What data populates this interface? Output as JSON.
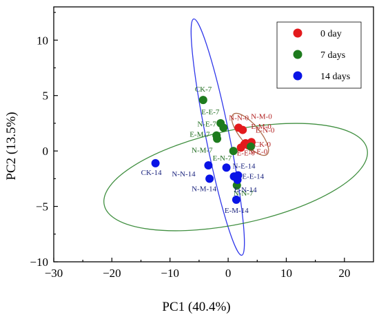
{
  "chart_data": {
    "type": "scatter",
    "xlabel": "PC1 (40.4%)",
    "ylabel": "PC2 (13.5%)",
    "xlim": [
      -30,
      25
    ],
    "ylim": [
      -10,
      13
    ],
    "xticks": [
      -30,
      -20,
      -10,
      0,
      10,
      20
    ],
    "yticks": [
      -10,
      -5,
      0,
      5,
      10
    ],
    "legend_position": "top-right",
    "series": [
      {
        "name": "0 day",
        "color": "#e31a1c",
        "label_color": "#b22222",
        "points": [
          {
            "x": 1.8,
            "y": 2.1,
            "label": "N-N-0"
          },
          {
            "x": 2.5,
            "y": 1.9,
            "label": "N-M-0"
          },
          {
            "x": 3.0,
            "y": 0.7,
            "label": "E-M-0"
          },
          {
            "x": 4.0,
            "y": 0.8,
            "label": "E-N-0"
          },
          {
            "x": 3.5,
            "y": 0.5,
            "label": "CK-0"
          },
          {
            "x": 2.8,
            "y": 0.6,
            "label": "N-E-0"
          },
          {
            "x": 2.2,
            "y": 0.3,
            "label": "E-E-0"
          }
        ]
      },
      {
        "name": "7 days",
        "color": "#1e7b1e",
        "label_color": "#1e6b1e",
        "points": [
          {
            "x": -4.3,
            "y": 4.6,
            "label": "CK-7"
          },
          {
            "x": -1.3,
            "y": 2.5,
            "label": "E-E-7"
          },
          {
            "x": -0.8,
            "y": 2.1,
            "label": "N-E-7"
          },
          {
            "x": -2.0,
            "y": 1.4,
            "label": "E-M-7"
          },
          {
            "x": -1.9,
            "y": 1.1,
            "label": "N-M-7"
          },
          {
            "x": 0.9,
            "y": 0.0,
            "label": "E-N-7"
          },
          {
            "x": 1.5,
            "y": -3.1,
            "label": "N-N-7"
          },
          {
            "x": 3.9,
            "y": 0.4,
            "label": ""
          }
        ]
      },
      {
        "name": "14 days",
        "color": "#0a14e6",
        "label_color": "#1a237e",
        "points": [
          {
            "x": -12.5,
            "y": -1.1,
            "label": "CK-14"
          },
          {
            "x": -3.4,
            "y": -1.3,
            "label": "N-N-14"
          },
          {
            "x": -3.2,
            "y": -2.5,
            "label": "N-M-14"
          },
          {
            "x": -0.3,
            "y": -1.5,
            "label": "N-E-14"
          },
          {
            "x": 1.0,
            "y": -2.3,
            "label": ""
          },
          {
            "x": 1.7,
            "y": -2.2,
            "label": "E-E-14"
          },
          {
            "x": 1.6,
            "y": -2.6,
            "label": "E-N-14"
          },
          {
            "x": 1.4,
            "y": -4.4,
            "label": "E-M-14"
          }
        ]
      }
    ]
  }
}
